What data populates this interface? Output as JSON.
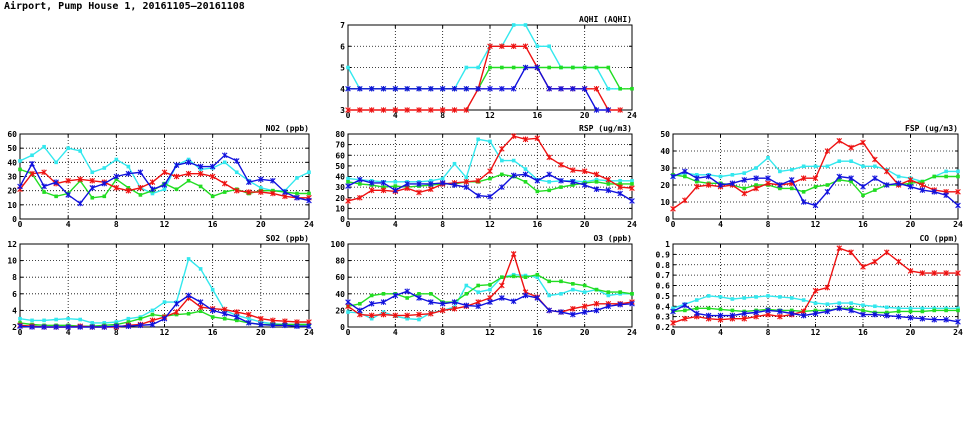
{
  "page": {
    "title": "Airport, Pump House 1, 20161105–20161108"
  },
  "colors": {
    "cyan": "#33e8ee",
    "red": "#ee1111",
    "green": "#22dd22",
    "blue": "#1111dd"
  },
  "chart_data": [
    {
      "id": "aqhi",
      "type": "line",
      "title": "AQHI (AQHI)",
      "xlim": [
        0,
        24
      ],
      "xticks": [
        0,
        4,
        8,
        12,
        16,
        20,
        24
      ],
      "ylim": [
        3,
        7
      ],
      "yticks": [
        3,
        4,
        5,
        6,
        7
      ],
      "grid": true,
      "series": [
        {
          "color": "cyan",
          "marker": "square",
          "values": [
            5,
            4,
            4,
            4,
            4,
            4,
            4,
            4,
            4,
            4,
            5,
            5,
            6,
            6,
            7,
            7,
            6,
            6,
            5,
            5,
            5,
            5,
            4,
            4,
            null
          ]
        },
        {
          "color": "green",
          "marker": "square",
          "values": [
            4,
            4,
            4,
            4,
            4,
            4,
            4,
            4,
            4,
            4,
            4,
            4,
            5,
            5,
            5,
            5,
            5,
            5,
            5,
            5,
            5,
            5,
            5,
            4,
            4
          ]
        },
        {
          "color": "red",
          "marker": "star",
          "values": [
            3,
            3,
            3,
            3,
            3,
            3,
            3,
            3,
            3,
            3,
            3,
            4,
            6,
            6,
            6,
            6,
            5,
            4,
            4,
            4,
            4,
            4,
            3,
            3,
            null
          ]
        },
        {
          "color": "blue",
          "marker": "star",
          "values": [
            4,
            4,
            4,
            4,
            4,
            4,
            4,
            4,
            4,
            4,
            4,
            4,
            4,
            4,
            4,
            5,
            5,
            4,
            4,
            4,
            4,
            3,
            3,
            null,
            null
          ]
        }
      ]
    },
    {
      "id": "no2",
      "type": "line",
      "title": "NO2 (ppb)",
      "xlim": [
        0,
        24
      ],
      "xticks": [
        0,
        4,
        8,
        12,
        16,
        20,
        24
      ],
      "ylim": [
        0,
        60
      ],
      "yticks": [
        0,
        10,
        20,
        30,
        40,
        50,
        60
      ],
      "grid": true,
      "series": [
        {
          "color": "cyan",
          "marker": "square",
          "values": [
            41,
            45,
            51,
            40,
            50,
            48,
            33,
            36,
            42,
            37,
            22,
            18,
            21,
            38,
            42,
            35,
            36,
            40,
            33,
            27,
            22,
            20,
            20,
            29,
            33
          ]
        },
        {
          "color": "green",
          "marker": "square",
          "values": [
            35,
            32,
            19,
            16,
            18,
            27,
            15,
            16,
            28,
            22,
            17,
            20,
            25,
            21,
            27,
            23,
            16,
            19,
            21,
            18,
            20,
            20,
            19,
            18,
            18
          ]
        },
        {
          "color": "red",
          "marker": "star",
          "values": [
            21,
            32,
            33,
            25,
            27,
            28,
            27,
            26,
            22,
            20,
            22,
            26,
            33,
            30,
            32,
            32,
            30,
            25,
            20,
            19,
            19,
            18,
            16,
            15,
            15
          ]
        },
        {
          "color": "blue",
          "marker": "star",
          "values": [
            23,
            39,
            23,
            26,
            17,
            11,
            22,
            25,
            30,
            32,
            33,
            21,
            24,
            38,
            40,
            37,
            37,
            45,
            41,
            26,
            28,
            27,
            19,
            15,
            13
          ]
        }
      ]
    },
    {
      "id": "rsp",
      "type": "line",
      "title": "RSP (ug/m3)",
      "xlim": [
        0,
        24
      ],
      "xticks": [
        0,
        4,
        8,
        12,
        16,
        20,
        24
      ],
      "ylim": [
        0,
        80
      ],
      "yticks": [
        0,
        10,
        20,
        30,
        40,
        50,
        60,
        70,
        80
      ],
      "grid": true,
      "series": [
        {
          "color": "cyan",
          "marker": "square",
          "values": [
            38,
            37,
            36,
            35,
            35,
            35,
            35,
            36,
            38,
            52,
            39,
            75,
            73,
            55,
            55,
            47,
            37,
            35,
            36,
            36,
            35,
            37,
            36,
            36,
            36
          ]
        },
        {
          "color": "green",
          "marker": "square",
          "values": [
            35,
            33,
            32,
            30,
            31,
            30,
            31,
            32,
            33,
            33,
            35,
            35,
            38,
            42,
            40,
            35,
            26,
            27,
            30,
            32,
            34,
            35,
            33,
            33,
            33
          ]
        },
        {
          "color": "red",
          "marker": "star",
          "values": [
            17,
            20,
            27,
            27,
            26,
            29,
            25,
            28,
            33,
            34,
            35,
            36,
            45,
            66,
            78,
            75,
            76,
            58,
            51,
            46,
            45,
            42,
            37,
            30,
            29
          ]
        },
        {
          "color": "blue",
          "marker": "star",
          "values": [
            31,
            37,
            34,
            34,
            27,
            33,
            33,
            33,
            34,
            32,
            30,
            22,
            21,
            30,
            41,
            42,
            36,
            42,
            36,
            35,
            32,
            28,
            27,
            24,
            17
          ]
        }
      ]
    },
    {
      "id": "fsp",
      "type": "line",
      "title": "FSP (ug/m3)",
      "xlim": [
        0,
        24
      ],
      "xticks": [
        0,
        4,
        8,
        12,
        16,
        20,
        24
      ],
      "ylim": [
        0,
        50
      ],
      "yticks": [
        0,
        10,
        20,
        30,
        40,
        50
      ],
      "grid": true,
      "series": [
        {
          "color": "cyan",
          "marker": "square",
          "values": [
            25,
            27,
            26,
            26,
            25,
            26,
            27,
            30,
            36,
            28,
            29,
            31,
            31,
            31,
            34,
            34,
            31,
            31,
            29,
            25,
            24,
            22,
            25,
            28,
            28
          ]
        },
        {
          "color": "green",
          "marker": "square",
          "values": [
            26,
            25,
            22,
            21,
            21,
            20,
            18,
            20,
            20,
            18,
            18,
            16,
            19,
            20,
            23,
            22,
            14,
            17,
            20,
            20,
            21,
            22,
            25,
            25,
            25
          ]
        },
        {
          "color": "red",
          "marker": "star",
          "values": [
            6,
            11,
            19,
            20,
            19,
            20,
            15,
            18,
            21,
            20,
            21,
            24,
            24,
            40,
            46,
            42,
            45,
            35,
            28,
            20,
            23,
            20,
            17,
            16,
            16
          ]
        },
        {
          "color": "blue",
          "marker": "star",
          "values": [
            25,
            28,
            24,
            25,
            20,
            21,
            23,
            24,
            24,
            20,
            23,
            10,
            8,
            16,
            25,
            24,
            19,
            24,
            20,
            21,
            19,
            17,
            16,
            14,
            8
          ]
        }
      ]
    },
    {
      "id": "so2",
      "type": "line",
      "title": "SO2 (ppb)",
      "xlim": [
        0,
        24
      ],
      "xticks": [
        0,
        4,
        8,
        12,
        16,
        20,
        24
      ],
      "ylim": [
        2,
        12
      ],
      "yticks": [
        2,
        4,
        6,
        8,
        10,
        12
      ],
      "grid": true,
      "series": [
        {
          "color": "cyan",
          "marker": "square",
          "values": [
            3,
            2.8,
            2.8,
            2.9,
            3,
            2.9,
            2.5,
            2.5,
            2.6,
            3,
            3.2,
            4,
            5,
            5,
            10.2,
            9,
            6.5,
            4,
            3.4,
            3,
            2.6,
            2.4,
            2.3,
            2.3,
            2.3
          ]
        },
        {
          "color": "green",
          "marker": "square",
          "values": [
            2.5,
            2.3,
            2.2,
            2.2,
            2.2,
            2.1,
            2.1,
            2.2,
            2.3,
            2.6,
            3,
            3.5,
            3.3,
            3.5,
            3.6,
            3.9,
            3.2,
            3,
            2.8,
            2.5,
            2.3,
            2.3,
            2.3,
            2.3,
            2.3
          ]
        },
        {
          "color": "red",
          "marker": "star",
          "values": [
            2.2,
            2.1,
            2,
            2,
            2,
            2.1,
            2,
            2,
            2,
            2.2,
            2.3,
            2.8,
            3.2,
            3.8,
            5.5,
            4.4,
            4.2,
            4.1,
            3.8,
            3.5,
            3,
            2.8,
            2.7,
            2.6,
            2.6
          ]
        },
        {
          "color": "blue",
          "marker": "star",
          "values": [
            2.1,
            2,
            2,
            2,
            2,
            2,
            2,
            2,
            2.1,
            2.1,
            2.2,
            2.3,
            3,
            4.8,
            5.8,
            5,
            4,
            3.6,
            3.2,
            2.5,
            2.3,
            2.2,
            2.2,
            2.1,
            2.1
          ]
        }
      ]
    },
    {
      "id": "o3",
      "type": "line",
      "title": "O3 (ppb)",
      "xlim": [
        0,
        24
      ],
      "xticks": [
        0,
        4,
        8,
        12,
        16,
        20,
        24
      ],
      "ylim": [
        0,
        100
      ],
      "yticks": [
        0,
        20,
        40,
        60,
        80,
        100
      ],
      "grid": true,
      "series": [
        {
          "color": "cyan",
          "marker": "square",
          "values": [
            18,
            17,
            10,
            18,
            13,
            10,
            9,
            17,
            20,
            24,
            50,
            42,
            45,
            60,
            63,
            62,
            60,
            38,
            40,
            45,
            42,
            45,
            38,
            40,
            40
          ]
        },
        {
          "color": "green",
          "marker": "square",
          "values": [
            25,
            28,
            38,
            40,
            40,
            35,
            40,
            40,
            30,
            30,
            40,
            50,
            51,
            60,
            61,
            60,
            63,
            55,
            55,
            52,
            50,
            45,
            42,
            42,
            40
          ]
        },
        {
          "color": "red",
          "marker": "star",
          "values": [
            25,
            15,
            14,
            15,
            14,
            14,
            15,
            16,
            20,
            22,
            25,
            30,
            35,
            50,
            88,
            42,
            36,
            20,
            18,
            22,
            25,
            28,
            28,
            28,
            30
          ]
        },
        {
          "color": "blue",
          "marker": "star",
          "values": [
            30,
            20,
            28,
            30,
            38,
            43,
            35,
            30,
            28,
            30,
            26,
            25,
            30,
            35,
            31,
            38,
            35,
            20,
            18,
            15,
            18,
            20,
            25,
            27,
            28
          ]
        }
      ]
    },
    {
      "id": "co",
      "type": "line",
      "title": "CO (ppm)",
      "xlim": [
        0,
        24
      ],
      "xticks": [
        0,
        4,
        8,
        12,
        16,
        20,
        24
      ],
      "ylim": [
        0.2,
        1.0
      ],
      "yticks": [
        0.2,
        0.3,
        0.4,
        0.5,
        0.6,
        0.7,
        0.8,
        0.9,
        1.0
      ],
      "grid": true,
      "series": [
        {
          "color": "cyan",
          "marker": "square",
          "values": [
            0.38,
            0.42,
            0.46,
            0.5,
            0.49,
            0.47,
            0.48,
            0.49,
            0.5,
            0.49,
            0.48,
            0.46,
            0.43,
            0.42,
            0.43,
            0.43,
            0.41,
            0.4,
            0.39,
            0.38,
            0.38,
            0.38,
            0.38,
            0.38,
            0.38
          ]
        },
        {
          "color": "green",
          "marker": "square",
          "values": [
            0.35,
            0.36,
            0.38,
            0.38,
            0.37,
            0.36,
            0.35,
            0.36,
            0.37,
            0.36,
            0.36,
            0.35,
            0.36,
            0.36,
            0.38,
            0.38,
            0.36,
            0.34,
            0.34,
            0.35,
            0.35,
            0.35,
            0.36,
            0.36,
            0.36
          ]
        },
        {
          "color": "red",
          "marker": "star",
          "values": [
            0.24,
            0.28,
            0.3,
            0.28,
            0.27,
            0.28,
            0.28,
            0.3,
            0.32,
            0.3,
            0.32,
            0.35,
            0.55,
            0.58,
            0.96,
            0.92,
            0.78,
            0.83,
            0.92,
            0.83,
            0.74,
            0.72,
            0.72,
            0.72,
            0.72
          ]
        },
        {
          "color": "blue",
          "marker": "star",
          "values": [
            0.35,
            0.41,
            0.33,
            0.31,
            0.31,
            0.31,
            0.33,
            0.34,
            0.36,
            0.35,
            0.33,
            0.31,
            0.33,
            0.35,
            0.38,
            0.36,
            0.32,
            0.32,
            0.31,
            0.3,
            0.29,
            0.28,
            0.27,
            0.27,
            0.25
          ]
        }
      ]
    }
  ]
}
